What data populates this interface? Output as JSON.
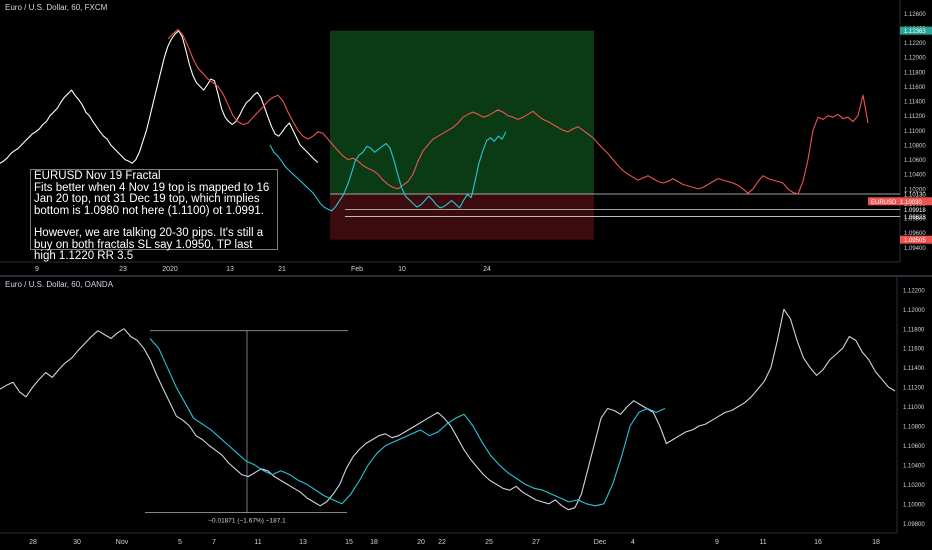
{
  "chart_data": [
    {
      "type": "line",
      "title": "Euro / U.S. Dollar, 60, FXCM",
      "symbol": "EURUSD",
      "last_price": "1.10030",
      "ylim": [
        1.092,
        1.127
      ],
      "y_ticks": [
        "1.12600",
        "1.12400",
        "1.12200",
        "1.12000",
        "1.11800",
        "1.11600",
        "1.11400",
        "1.11200",
        "1.11000",
        "1.10800",
        "1.10600",
        "1.10400",
        "1.10200",
        "1.10000",
        "1.09800",
        "1.09600",
        "1.09400"
      ],
      "price_labels": [
        {
          "text": "1.12363",
          "color": "#26a69a"
        },
        {
          "text": "1.10130",
          "color": "#ffffff"
        },
        {
          "text": "1.09918",
          "color": "#ffffff"
        },
        {
          "text": "1.09823",
          "color": "#ffffff"
        },
        {
          "text": "1.09505",
          "color": "#ef5350"
        }
      ],
      "x_ticks": [
        "9",
        "23",
        "2020",
        "13",
        "21",
        "Feb",
        "10",
        "24"
      ],
      "position_box": {
        "entry": 1.1013,
        "target": 1.12363,
        "stop": 1.09505
      },
      "horizontal_lines": [
        1.1013,
        1.09918,
        1.09823
      ],
      "series": [
        {
          "color": "#ffffff",
          "values": [
            1.1055,
            1.1058,
            1.1062,
            1.1068,
            1.1072,
            1.1075,
            1.108,
            1.1085,
            1.109,
            1.1095,
            1.1098,
            1.1102,
            1.1108,
            1.1112,
            1.112,
            1.1125,
            1.113,
            1.1138,
            1.1145,
            1.115,
            1.1155,
            1.1148,
            1.1142,
            1.1135,
            1.1125,
            1.112,
            1.1112,
            1.1105,
            1.1098,
            1.1092,
            1.1088,
            1.108,
            1.1075,
            1.107,
            1.1065,
            1.106,
            1.1058,
            1.1055,
            1.106,
            1.107,
            1.1085,
            1.11,
            1.112,
            1.114,
            1.116,
            1.118,
            1.12,
            1.1215,
            1.1225,
            1.1232,
            1.1236,
            1.1228,
            1.121,
            1.119,
            1.1175,
            1.1165,
            1.116,
            1.1155,
            1.1162,
            1.117,
            1.1168,
            1.115,
            1.113,
            1.1118,
            1.1112,
            1.1108,
            1.1112,
            1.112,
            1.113,
            1.1138,
            1.1142,
            1.1148,
            1.1152,
            1.1145,
            1.1132,
            1.1118,
            1.1105,
            1.1095,
            1.1092,
            1.1098,
            1.1105,
            1.111,
            1.11,
            1.109,
            1.108,
            1.1075,
            1.107,
            1.1065,
            1.106,
            1.1056
          ]
        },
        {
          "color": "#ef5350",
          "values": [
            1.1225,
            1.1232,
            1.1238,
            1.123,
            1.1215,
            1.1198,
            1.1185,
            1.1178,
            1.117,
            1.1165,
            1.116,
            1.115,
            1.1135,
            1.112,
            1.1112,
            1.1108,
            1.111,
            1.1118,
            1.1125,
            1.1132,
            1.114,
            1.1145,
            1.1148,
            1.114,
            1.1125,
            1.1112,
            1.11,
            1.1092,
            1.1088,
            1.1092,
            1.1098,
            1.1096,
            1.1088,
            1.108,
            1.1072,
            1.1065,
            1.106,
            1.1062,
            1.1058,
            1.1052,
            1.1048,
            1.1045,
            1.104,
            1.1032,
            1.1026,
            1.1022,
            1.102,
            1.1025,
            1.103,
            1.104,
            1.1058,
            1.1072,
            1.108,
            1.1088,
            1.1092,
            1.1096,
            1.11,
            1.1104,
            1.111,
            1.1118,
            1.1122,
            1.1125,
            1.1122,
            1.1118,
            1.112,
            1.1124,
            1.1128,
            1.1125,
            1.112,
            1.1118,
            1.1115,
            1.1118,
            1.1122,
            1.1126,
            1.112,
            1.1115,
            1.1112,
            1.1108,
            1.1104,
            1.11,
            1.1098,
            1.1102,
            1.1105,
            1.11,
            1.1095,
            1.109,
            1.1082,
            1.1075,
            1.1068,
            1.106,
            1.1052,
            1.1045,
            1.104,
            1.1036,
            1.1032,
            1.1035,
            1.1038,
            1.1034,
            1.103,
            1.1028,
            1.103,
            1.1034,
            1.103,
            1.1026,
            1.1024,
            1.1022,
            1.102,
            1.1022,
            1.1026,
            1.103,
            1.1034,
            1.1032,
            1.103,
            1.1028,
            1.1025,
            1.102,
            1.1014,
            1.102,
            1.103,
            1.1038,
            1.1034,
            1.1032,
            1.103,
            1.1028,
            1.102,
            1.1015,
            1.1013,
            1.103,
            1.106,
            1.11,
            1.1118,
            1.1115,
            1.112,
            1.1118,
            1.1122,
            1.1116,
            1.1118,
            1.1112,
            1.112,
            1.1148,
            1.111
          ]
        },
        {
          "color": "#26c6da",
          "values": [
            1.108,
            1.107,
            1.1065,
            1.1058,
            1.105,
            1.1045,
            1.104,
            1.1035,
            1.103,
            1.1025,
            1.102,
            1.1015,
            1.1008,
            1.1,
            1.0995,
            1.0992,
            1.099,
            1.0996,
            1.1004,
            1.1012,
            1.1025,
            1.104,
            1.1058,
            1.1066,
            1.107,
            1.1078,
            1.1076,
            1.107,
            1.1074,
            1.1078,
            1.1082,
            1.1076,
            1.106,
            1.104,
            1.1022,
            1.101,
            1.1005,
            1.1,
            1.0995,
            1.0998,
            1.1004,
            1.101,
            1.1005,
            1.0998,
            1.0994,
            1.0996,
            1.1,
            1.1004,
            1.0999,
            1.0994,
            1.1004,
            1.1012,
            1.1008,
            1.103,
            1.1055,
            1.1072,
            1.1086,
            1.109,
            1.1085,
            1.1092,
            1.1088,
            1.1098
          ]
        }
      ]
    },
    {
      "type": "line",
      "title": "Euro / U.S. Dollar, 60, OANDA",
      "ylim": [
        1.097,
        1.1225
      ],
      "y_ticks": [
        "1.12200",
        "1.12000",
        "1.11800",
        "1.11600",
        "1.11400",
        "1.11200",
        "1.11000",
        "1.10800",
        "1.10600",
        "1.10400",
        "1.10200",
        "1.10000",
        "1.09800"
      ],
      "x_ticks": [
        "28",
        "30",
        "Nov",
        "5",
        "7",
        "11",
        "13",
        "15",
        "18",
        "20",
        "22",
        "25",
        "27",
        "Dec",
        "4",
        "9",
        "11",
        "16",
        "18"
      ],
      "measure_label": "−0.01871 (−1.67%) −187.1",
      "series": [
        {
          "color": "#d1d4dc",
          "values": [
            1.1118,
            1.1122,
            1.1125,
            1.1115,
            1.111,
            1.112,
            1.1128,
            1.1135,
            1.113,
            1.1138,
            1.1145,
            1.115,
            1.1158,
            1.1165,
            1.1172,
            1.1178,
            1.1174,
            1.117,
            1.1176,
            1.118,
            1.1172,
            1.1168,
            1.116,
            1.1148,
            1.1132,
            1.1118,
            1.1104,
            1.109,
            1.1086,
            1.108,
            1.107,
            1.1066,
            1.106,
            1.1055,
            1.105,
            1.1042,
            1.1036,
            1.103,
            1.1028,
            1.1032,
            1.1036,
            1.1034,
            1.1028,
            1.1024,
            1.102,
            1.1016,
            1.1012,
            1.1006,
            1.1002,
            1.0998,
            1.1002,
            1.101,
            1.102,
            1.1036,
            1.1048,
            1.1056,
            1.1062,
            1.1066,
            1.107,
            1.1072,
            1.1068,
            1.107,
            1.1074,
            1.1078,
            1.1082,
            1.1086,
            1.109,
            1.1094,
            1.1088,
            1.108,
            1.1068,
            1.1056,
            1.1046,
            1.1038,
            1.103,
            1.1024,
            1.102,
            1.1016,
            1.1014,
            1.1018,
            1.1012,
            1.1008,
            1.1004,
            1.1002,
            1.1,
            1.1004,
            1.0998,
            1.0994,
            1.0996,
            1.101,
            1.1036,
            1.1062,
            1.1088,
            1.1098,
            1.1096,
            1.1092,
            1.11,
            1.1106,
            1.1102,
            1.1098,
            1.1094,
            1.108,
            1.1062,
            1.1066,
            1.107,
            1.1074,
            1.1076,
            1.108,
            1.1082,
            1.1086,
            1.109,
            1.1094,
            1.1096,
            1.11,
            1.1104,
            1.111,
            1.1118,
            1.1126,
            1.114,
            1.1168,
            1.12,
            1.119,
            1.1168,
            1.115,
            1.114,
            1.1132,
            1.1138,
            1.1148,
            1.1154,
            1.116,
            1.1172,
            1.1168,
            1.1156,
            1.1148,
            1.1136,
            1.1128,
            1.112,
            1.1116
          ]
        },
        {
          "color": "#26c6da",
          "values": [
            1.117,
            1.116,
            1.114,
            1.112,
            1.1104,
            1.1088,
            1.1082,
            1.1076,
            1.1068,
            1.106,
            1.1052,
            1.1044,
            1.104,
            1.1034,
            1.103,
            1.1034,
            1.103,
            1.1024,
            1.102,
            1.1014,
            1.1008,
            1.1004,
            1.1,
            1.101,
            1.1024,
            1.104,
            1.1052,
            1.106,
            1.1064,
            1.1068,
            1.1072,
            1.1076,
            1.107,
            1.1074,
            1.1082,
            1.1088,
            1.1092,
            1.108,
            1.1064,
            1.105,
            1.104,
            1.1032,
            1.1026,
            1.102,
            1.1016,
            1.1014,
            1.101,
            1.1006,
            1.1002,
            1.1004,
            1.1,
            1.0998,
            1.1,
            1.102,
            1.1048,
            1.108,
            1.1094,
            1.1098,
            1.1094,
            1.1098
          ]
        }
      ]
    }
  ],
  "annotation": {
    "title": "EURUSD Nov 19 Fractal",
    "body": "Fits better when 4 Nov 19 top is mapped to 16 Jan 20 top, not 31 Dec 19 top, which implies bottom is 1.0980 not here (1.1100) ot 1.0991.",
    "body2": "However, we are talking 20-30 pips. It's still a buy on both fractals SL say 1.0950, TP last high 1.1220 RR 3.5"
  }
}
